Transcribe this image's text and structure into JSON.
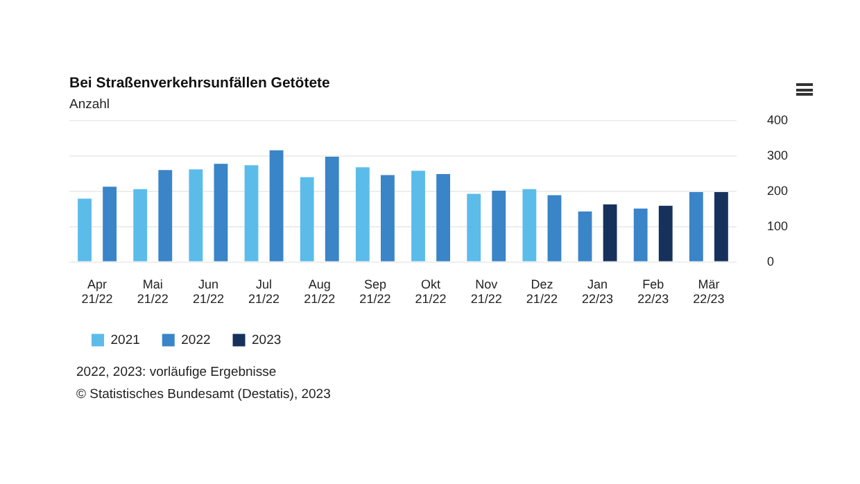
{
  "chart_data": {
    "type": "bar",
    "title": "Bei Straßenverkehrsunfällen Getötete",
    "subtitle": "Anzahl",
    "categories": [
      "Apr 21/22",
      "Mai 21/22",
      "Jun 21/22",
      "Jul 21/22",
      "Aug 21/22",
      "Sep 21/22",
      "Okt 21/22",
      "Nov 21/22",
      "Dez 21/22",
      "Jan 22/23",
      "Feb 22/23",
      "Mär 22/23"
    ],
    "series": [
      {
        "name": "2021",
        "color": "#5bbcea",
        "values": [
          179,
          206,
          262,
          274,
          240,
          268,
          258,
          193,
          206,
          null,
          null,
          null
        ]
      },
      {
        "name": "2022",
        "color": "#3a84c8",
        "values": [
          213,
          260,
          278,
          316,
          298,
          246,
          249,
          202,
          189,
          143,
          151,
          198
        ]
      },
      {
        "name": "2023",
        "color": "#16325c",
        "values": [
          null,
          null,
          null,
          null,
          null,
          null,
          null,
          null,
          null,
          163,
          159,
          198
        ]
      }
    ],
    "ylim": [
      0,
      400
    ],
    "yticks": [
      0,
      100,
      200,
      300,
      400
    ],
    "grid": "y",
    "legend": "bottom left",
    "annotations": [
      "2022, 2023: vorläufige Ergebnisse",
      "© Statistisches Bundesamt (Destatis), 2023"
    ]
  }
}
